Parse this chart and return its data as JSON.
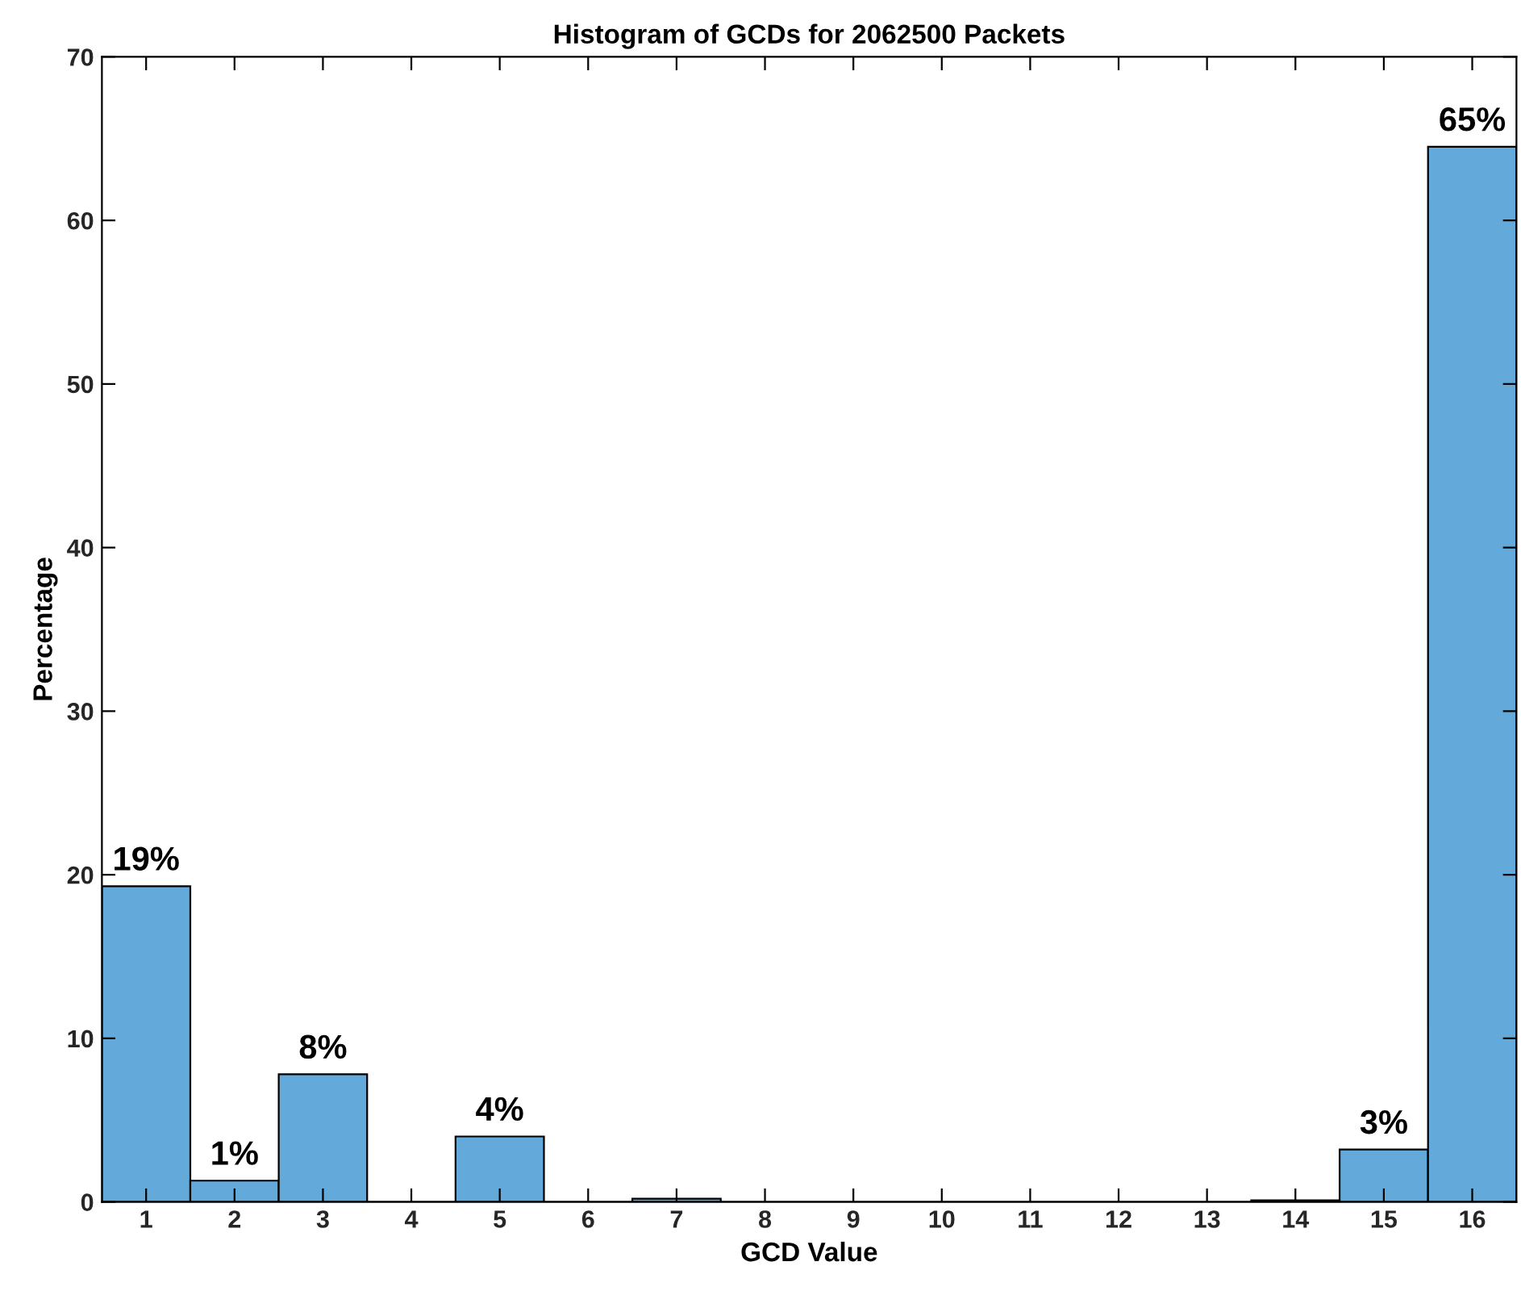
{
  "chart_data": {
    "type": "histogram",
    "title": "Histogram of GCDs for 2062500 Packets",
    "xlabel": "GCD Value",
    "ylabel": "Percentage",
    "bins": [
      0.5,
      1.5,
      2.5,
      3.5,
      4.5,
      5.5,
      6.5,
      7.5,
      8.5,
      9.5,
      10.5,
      11.5,
      12.5,
      13.5,
      14.5,
      15.5,
      16.5
    ],
    "values": [
      19.3,
      1.3,
      7.8,
      0,
      4.0,
      0,
      0.2,
      0,
      0,
      0,
      0,
      0,
      0,
      0.1,
      3.2,
      64.5
    ],
    "value_labels": [
      "19%",
      "1%",
      "8%",
      null,
      "4%",
      null,
      null,
      null,
      null,
      null,
      null,
      null,
      null,
      null,
      "3%",
      "65%"
    ],
    "color": "#63a9d9",
    "xlim": [
      0.5,
      16.5
    ],
    "xticks": [
      1,
      2,
      3,
      4,
      5,
      6,
      7,
      8,
      9,
      10,
      11,
      12,
      13,
      14,
      15,
      16
    ],
    "ylim": [
      0,
      70
    ],
    "yticks": [
      0,
      10,
      20,
      30,
      40,
      50,
      60,
      70
    ],
    "grid": false
  }
}
